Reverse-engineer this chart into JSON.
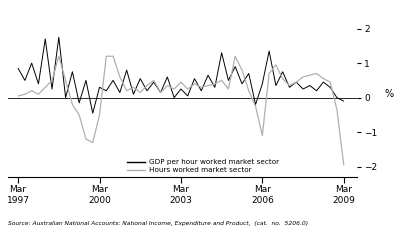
{
  "title": "",
  "ylabel": "%",
  "ylim": [
    -2.3,
    2.5
  ],
  "yticks": [
    -2,
    -1,
    0,
    1,
    2
  ],
  "source_text": "Source: Australian National Accounts: National Income, Expenditure and Product,  (cat.  no.  5206.0)",
  "legend_entries": [
    "GDP per hour worked market sector",
    "Hours worked market sector"
  ],
  "line_colors": [
    "#000000",
    "#b0b0b0"
  ],
  "background_color": "#ffffff",
  "gdp_per_hour": [
    0.85,
    0.5,
    1.0,
    0.4,
    1.7,
    0.25,
    1.75,
    0.0,
    0.75,
    -0.15,
    0.5,
    -0.45,
    0.3,
    0.2,
    0.5,
    0.15,
    0.8,
    0.1,
    0.55,
    0.2,
    0.45,
    0.15,
    0.6,
    0.0,
    0.25,
    0.05,
    0.55,
    0.2,
    0.65,
    0.3,
    1.3,
    0.5,
    0.9,
    0.4,
    0.7,
    -0.2,
    0.4,
    1.35,
    0.35,
    0.75,
    0.3,
    0.45,
    0.25,
    0.35,
    0.2,
    0.45,
    0.3,
    0.0,
    -0.1
  ],
  "hours_worked": [
    0.05,
    0.1,
    0.2,
    0.1,
    0.3,
    0.5,
    1.2,
    0.5,
    -0.2,
    -0.5,
    -1.2,
    -1.3,
    -0.5,
    1.2,
    1.2,
    0.6,
    0.2,
    0.3,
    0.15,
    0.35,
    0.5,
    0.15,
    0.35,
    0.25,
    0.45,
    0.25,
    0.4,
    0.3,
    0.35,
    0.4,
    0.5,
    0.25,
    1.2,
    0.8,
    0.2,
    -0.25,
    -1.1,
    0.7,
    0.95,
    0.55,
    0.35,
    0.45,
    0.6,
    0.65,
    0.7,
    0.55,
    0.45,
    -0.35,
    -1.95
  ],
  "major_tick_positions": [
    0,
    12,
    24,
    36,
    48
  ],
  "xtick_labels": [
    "Mar\n1997",
    "Mar\n2000",
    "Mar\n2003",
    "Mar\n2006",
    "Mar\n2009"
  ]
}
